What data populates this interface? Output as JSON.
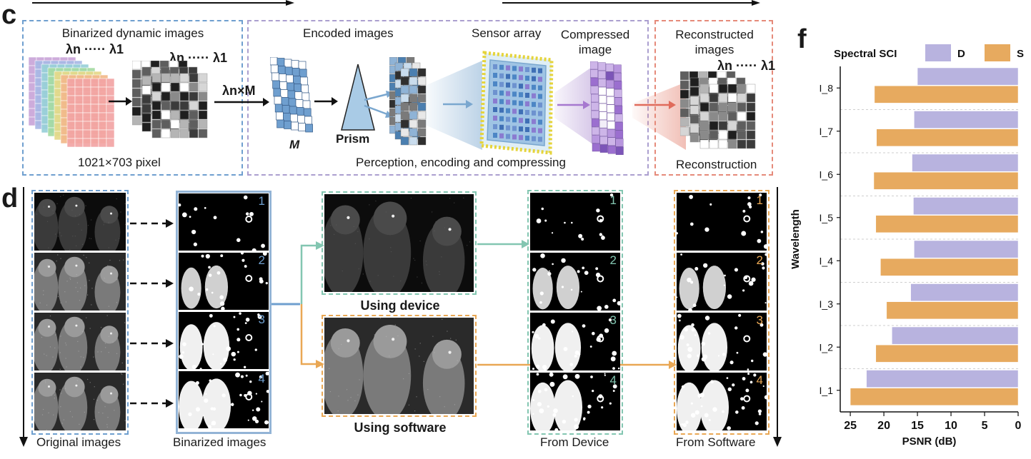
{
  "panel_c": {
    "letter": "c",
    "binarized_title": "Binarized dynamic images",
    "lambda_n": "λn",
    "dots": "·····",
    "lambda_1": "λ1",
    "pixel_label": "1021×703 pixel",
    "lambda_x_m": "λn×M",
    "mask_label": "M",
    "encoded_title": "Encoded images",
    "prism_label": "Prism",
    "sensor_title": "Sensor array",
    "compressed_title": "Compressed image",
    "perception_label": "Perception, encoding and compressing",
    "reconstructed_title": "Reconstructed images",
    "reconstruction_label": "Reconstruction"
  },
  "panel_d": {
    "letter": "d",
    "original_label": "Original images",
    "binarized_label": "Binarized images",
    "using_device": "Using device",
    "using_software": "Using software",
    "from_device": "From Device",
    "from_software": "From Software",
    "frame_numbers": [
      "1",
      "2",
      "3",
      "4"
    ]
  },
  "panel_f": {
    "letter": "f"
  },
  "colors": {
    "blue": "#6f9fcf",
    "purple": "#ab9fcf",
    "red": "#e58a7a",
    "green": "#83c6b1",
    "orange": "#e9a754",
    "bar_D": "#b8b3df",
    "bar_S": "#e7aa5f"
  },
  "chart_data": {
    "type": "bar",
    "orientation": "horizontal",
    "legend_title": "Spectral SCI",
    "legend_position": "top",
    "categories": [
      "I_8",
      "I_7",
      "I_6",
      "I_5",
      "I_4",
      "I_3",
      "I_2",
      "I_1"
    ],
    "series": [
      {
        "name": "D",
        "color": "#b8b3df",
        "values": [
          15.0,
          15.5,
          15.8,
          15.6,
          15.5,
          16.0,
          18.8,
          22.6
        ]
      },
      {
        "name": "S",
        "color": "#e7aa5f",
        "values": [
          21.4,
          21.1,
          21.5,
          21.2,
          20.5,
          19.6,
          21.2,
          25.0
        ]
      }
    ],
    "xlabel": "PSNR (dB)",
    "ylabel": "Wavelength",
    "xlim": [
      26.5,
      0
    ],
    "xticks": [
      25,
      20,
      15,
      10,
      5,
      0
    ],
    "x_reversed": true,
    "grid": false
  }
}
